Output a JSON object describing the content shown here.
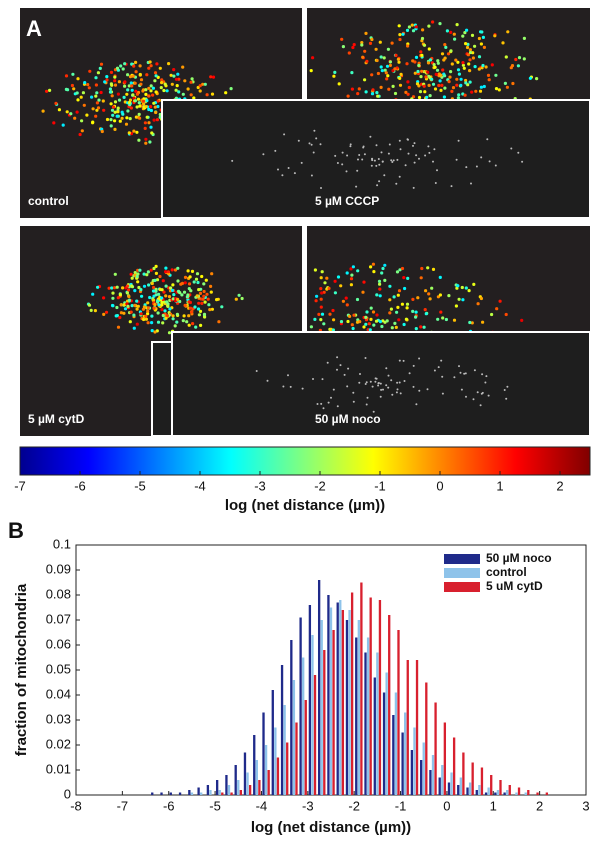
{
  "panel_a": {
    "label": "A",
    "images": [
      {
        "label": "control"
      },
      {
        "label": "5 µM CCCP"
      },
      {
        "label": "5 µM cytD"
      },
      {
        "label": "50 µM noco"
      }
    ],
    "colorbar": {
      "lim": [
        -7,
        2.5
      ],
      "ticks": [
        -7,
        -6,
        -5,
        -4,
        -3,
        -2,
        -1,
        0,
        1,
        2
      ],
      "label": "log (net distance (µm))"
    }
  },
  "chart_data": {
    "type": "bar",
    "panel_label": "B",
    "xlabel": "log (net distance (µm))",
    "ylabel": "fraction of mitochondria",
    "xlim": [
      -8,
      3
    ],
    "ylim": [
      0,
      0.1
    ],
    "xticks": [
      -8,
      -7,
      -6,
      -5,
      -4,
      -3,
      -2,
      -1,
      0,
      1,
      2,
      3
    ],
    "yticks": [
      0,
      0.01,
      0.02,
      0.03,
      0.04,
      0.05,
      0.06,
      0.07,
      0.08,
      0.09,
      0.1
    ],
    "legend": "upper right",
    "x": [
      -6.9,
      -6.7,
      -6.5,
      -6.3,
      -6.1,
      -5.9,
      -5.7,
      -5.5,
      -5.3,
      -5.1,
      -4.9,
      -4.7,
      -4.5,
      -4.3,
      -4.1,
      -3.9,
      -3.7,
      -3.5,
      -3.3,
      -3.1,
      -2.9,
      -2.7,
      -2.5,
      -2.3,
      -2.1,
      -1.9,
      -1.7,
      -1.5,
      -1.3,
      -1.1,
      -0.9,
      -0.7,
      -0.5,
      -0.3,
      -0.1,
      0.1,
      0.3,
      0.5,
      0.7,
      0.9,
      1.1,
      1.3,
      1.5,
      1.7,
      1.9,
      2.1,
      2.3,
      2.5,
      2.7,
      2.9
    ],
    "series": [
      {
        "name": "50 µM noco",
        "color": "#1f2a8a",
        "values": [
          0,
          0,
          0,
          0.001,
          0.001,
          0.001,
          0.001,
          0.002,
          0.003,
          0.004,
          0.006,
          0.008,
          0.012,
          0.017,
          0.024,
          0.033,
          0.042,
          0.052,
          0.062,
          0.071,
          0.076,
          0.086,
          0.08,
          0.077,
          0.07,
          0.063,
          0.057,
          0.047,
          0.041,
          0.032,
          0.025,
          0.018,
          0.014,
          0.01,
          0.007,
          0.005,
          0.004,
          0.003,
          0.002,
          0.001,
          0.001,
          0.001,
          0,
          0,
          0,
          0,
          0,
          0,
          0,
          0
        ]
      },
      {
        "name": "control",
        "color": "#8ec3ea",
        "values": [
          0,
          0,
          0,
          0,
          0,
          0,
          0,
          0.001,
          0.001,
          0.002,
          0.002,
          0.004,
          0.006,
          0.009,
          0.014,
          0.02,
          0.027,
          0.036,
          0.046,
          0.055,
          0.064,
          0.07,
          0.075,
          0.078,
          0.074,
          0.07,
          0.063,
          0.057,
          0.049,
          0.041,
          0.033,
          0.027,
          0.021,
          0.016,
          0.012,
          0.009,
          0.007,
          0.005,
          0.004,
          0.003,
          0.002,
          0.002,
          0.001,
          0.001,
          0,
          0,
          0,
          0,
          0,
          0
        ]
      },
      {
        "name": "5 uM cytD",
        "color": "#d8202e",
        "values": [
          0,
          0,
          0,
          0,
          0,
          0,
          0,
          0,
          0,
          0,
          0.001,
          0.001,
          0.002,
          0.004,
          0.006,
          0.01,
          0.015,
          0.021,
          0.029,
          0.038,
          0.048,
          0.058,
          0.066,
          0.074,
          0.081,
          0.085,
          0.079,
          0.078,
          0.072,
          0.066,
          0.054,
          0.054,
          0.045,
          0.037,
          0.029,
          0.023,
          0.017,
          0.013,
          0.011,
          0.008,
          0.006,
          0.004,
          0.003,
          0.002,
          0.001,
          0.001,
          0,
          0,
          0,
          0
        ]
      }
    ]
  }
}
